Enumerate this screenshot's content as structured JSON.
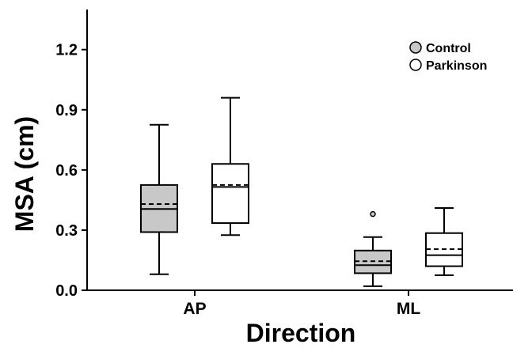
{
  "chart_data": {
    "type": "box",
    "xlabel": "Direction",
    "ylabel": "MSA (cm)",
    "ylim": [
      0,
      1.4
    ],
    "yticks": [
      {
        "value": 0.0,
        "label": "0.0"
      },
      {
        "value": 0.3,
        "label": "0.3"
      },
      {
        "value": 0.6,
        "label": "0.6"
      },
      {
        "value": 0.9,
        "label": "0.9"
      },
      {
        "value": 1.2,
        "label": "1.2"
      }
    ],
    "categories": [
      "AP",
      "ML"
    ],
    "legend_position": "top-right",
    "grid": false,
    "series": [
      {
        "name": "Control",
        "color": "#c8c8c8",
        "boxes": [
          {
            "category": "AP",
            "whisker_low": 0.08,
            "q1": 0.29,
            "median": 0.405,
            "mean": 0.43,
            "q3": 0.525,
            "whisker_high": 0.825,
            "outliers": []
          },
          {
            "category": "ML",
            "whisker_low": 0.02,
            "q1": 0.085,
            "median": 0.125,
            "mean": 0.145,
            "q3": 0.198,
            "whisker_high": 0.265,
            "outliers": [
              0.38
            ]
          }
        ]
      },
      {
        "name": "Parkinson",
        "color": "#ffffff",
        "boxes": [
          {
            "category": "AP",
            "whisker_low": 0.275,
            "q1": 0.335,
            "median": 0.515,
            "mean": 0.525,
            "q3": 0.63,
            "whisker_high": 0.96,
            "outliers": []
          },
          {
            "category": "ML",
            "whisker_low": 0.075,
            "q1": 0.12,
            "median": 0.175,
            "mean": 0.205,
            "q3": 0.285,
            "whisker_high": 0.41,
            "outliers": []
          }
        ]
      }
    ]
  }
}
